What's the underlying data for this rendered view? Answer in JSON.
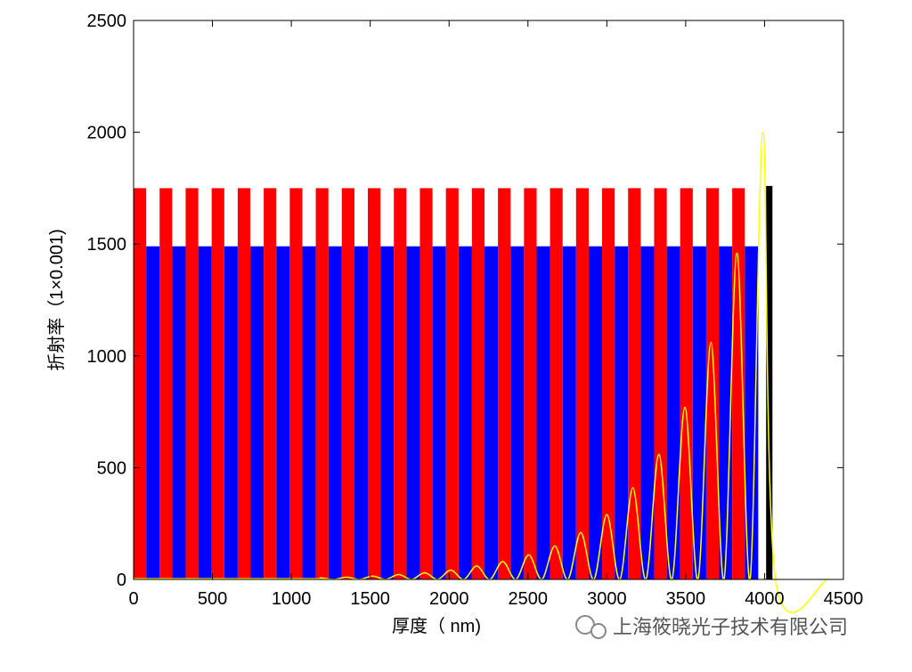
{
  "chart_data": {
    "type": "layers",
    "xlabel": "厚度（ nm)",
    "ylabel": "折射率（1×0.001)",
    "xlim": [
      0,
      4500
    ],
    "xticks": [
      0,
      500,
      1000,
      1500,
      2000,
      2500,
      3000,
      3500,
      4000,
      4500
    ],
    "ylim": [
      0,
      2500
    ],
    "yticks": [
      0,
      500,
      1000,
      1500,
      2000,
      2500
    ],
    "layers": [
      {
        "color": "#0000ff",
        "width": 85,
        "x": [
          80,
          245,
          410,
          575,
          740,
          905,
          1070,
          1235,
          1400,
          1565,
          1730,
          1895,
          2060,
          2225,
          2390,
          2555,
          2720,
          2885,
          3050,
          3215,
          3380,
          3545,
          3710,
          3875
        ],
        "values": [
          1490,
          1490,
          1490,
          1490,
          1490,
          1490,
          1490,
          1490,
          1490,
          1490,
          1490,
          1490,
          1490,
          1490,
          1490,
          1490,
          1490,
          1490,
          1490,
          1490,
          1490,
          1490,
          1490,
          1490
        ]
      },
      {
        "color": "#ff0000",
        "width": 80,
        "x": [
          0,
          165,
          330,
          495,
          660,
          825,
          990,
          1155,
          1320,
          1485,
          1650,
          1815,
          1980,
          2145,
          2310,
          2475,
          2640,
          2805,
          2970,
          3135,
          3300,
          3465,
          3630,
          3795
        ],
        "values": [
          1750,
          1750,
          1750,
          1750,
          1750,
          1750,
          1750,
          1750,
          1750,
          1750,
          1750,
          1750,
          1750,
          1750,
          1750,
          1750,
          1750,
          1750,
          1750,
          1750,
          1750,
          1750,
          1750,
          1750
        ]
      },
      {
        "color": "#000000",
        "width": 40,
        "x": [
          4010
        ],
        "values": [
          1760
        ]
      }
    ],
    "field": {
      "color": "#ffff00",
      "x": [
        0,
        1100,
        1185,
        1268,
        1350,
        1433,
        1515,
        1598,
        1680,
        1763,
        1845,
        1928,
        2010,
        2093,
        2175,
        2258,
        2340,
        2423,
        2505,
        2588,
        2670,
        2753,
        2835,
        2918,
        3000,
        3083,
        3165,
        3248,
        3330,
        3413,
        3495,
        3578,
        3660,
        3743,
        3825,
        3908,
        3990,
        4070,
        4400
      ],
      "values": [
        3,
        3,
        7,
        0,
        10,
        0,
        15,
        0,
        22,
        0,
        30,
        0,
        42,
        0,
        60,
        0,
        80,
        0,
        110,
        0,
        150,
        0,
        210,
        0,
        290,
        0,
        410,
        0,
        560,
        0,
        770,
        0,
        1060,
        0,
        1460,
        0,
        2000,
        0,
        0
      ]
    },
    "watermark": "上海筱晓光子技术有限公司"
  }
}
